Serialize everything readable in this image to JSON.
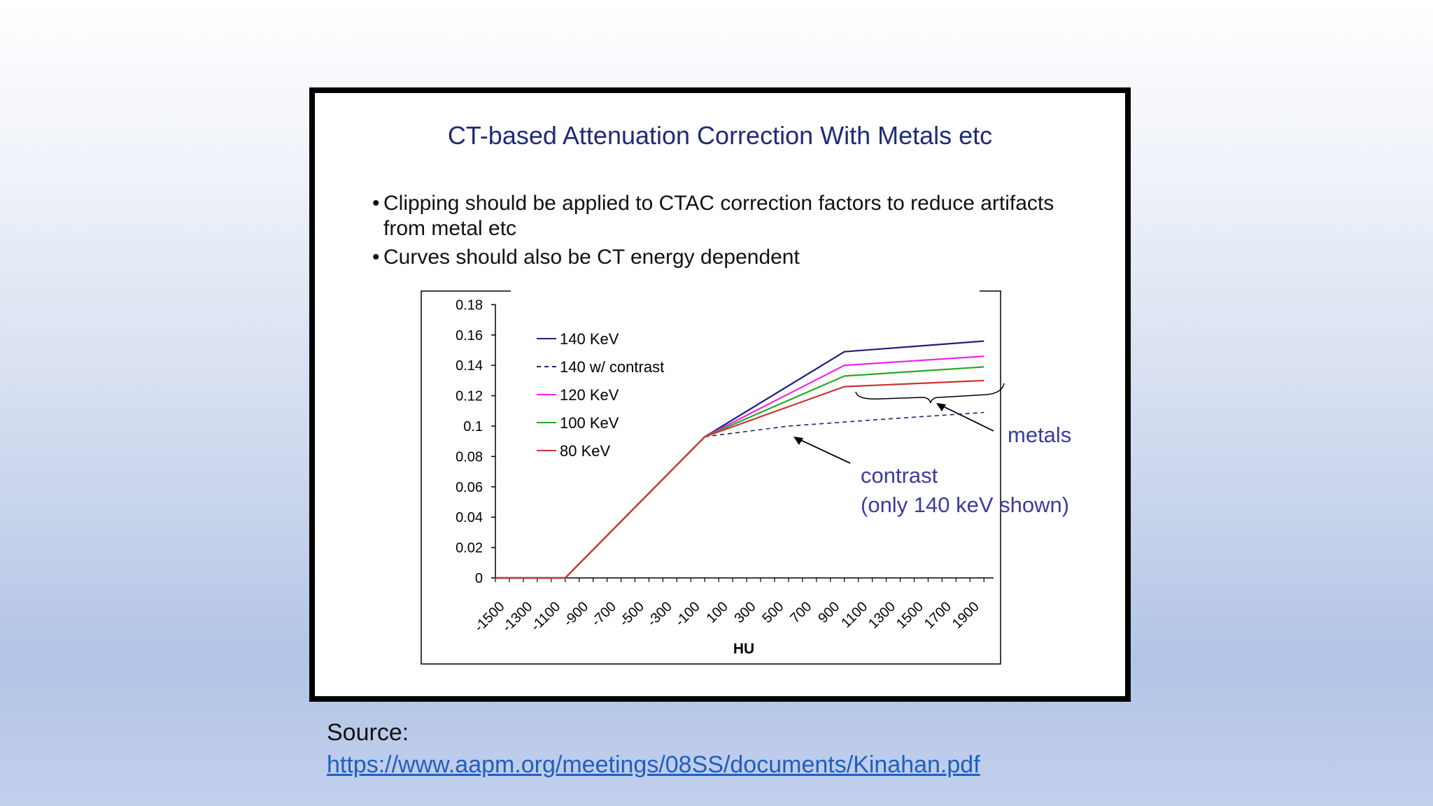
{
  "slide": {
    "title": "CT-based Attenuation Correction With Metals etc",
    "bullets": [
      "Clipping should be applied to CTAC correction factors to reduce artifacts from metal etc",
      "Curves should also be CT energy dependent"
    ],
    "bullet_symbol": "•"
  },
  "chart_data": {
    "type": "line",
    "xlabel": "HU",
    "ylabel": "",
    "title": "",
    "xlim": [
      -1500,
      2100
    ],
    "ylim": [
      0,
      0.18
    ],
    "yticks": [
      "0",
      "0.02",
      "0.04",
      "0.06",
      "0.08",
      "0.1",
      "0.12",
      "0.14",
      "0.16",
      "0.18"
    ],
    "xticks": [
      "-1500",
      "-1300",
      "-1100",
      "-900",
      "-700",
      "-500",
      "-300",
      "-100",
      "100",
      "300",
      "500",
      "700",
      "900",
      "1100",
      "1300",
      "1500",
      "1700",
      "1900"
    ],
    "legend_position": "top-left",
    "series": [
      {
        "name": "140 KeV",
        "color": "#1f1f7a",
        "dash": false,
        "points": [
          [
            -1500,
            0
          ],
          [
            -1000,
            0
          ],
          [
            0,
            0.093
          ],
          [
            1000,
            0.149
          ],
          [
            2000,
            0.156
          ]
        ]
      },
      {
        "name": "140 w/ contrast",
        "color": "#1f1f7a",
        "dash": true,
        "points": [
          [
            0,
            0.093
          ],
          [
            600,
            0.1
          ],
          [
            1200,
            0.104
          ],
          [
            2000,
            0.109
          ]
        ]
      },
      {
        "name": "120 KeV",
        "color": "#ee22ee",
        "dash": false,
        "points": [
          [
            -1500,
            0
          ],
          [
            -1000,
            0
          ],
          [
            0,
            0.093
          ],
          [
            1000,
            0.14
          ],
          [
            2000,
            0.146
          ]
        ]
      },
      {
        "name": "100 KeV",
        "color": "#22aa22",
        "dash": false,
        "points": [
          [
            -1500,
            0
          ],
          [
            -1000,
            0
          ],
          [
            0,
            0.093
          ],
          [
            1000,
            0.133
          ],
          [
            2000,
            0.139
          ]
        ]
      },
      {
        "name": "80 KeV",
        "color": "#cc3333",
        "dash": false,
        "points": [
          [
            -1500,
            0
          ],
          [
            -1000,
            0
          ],
          [
            0,
            0.093
          ],
          [
            1000,
            0.126
          ],
          [
            2000,
            0.13
          ]
        ]
      }
    ],
    "annotations": [
      {
        "text": "metals",
        "color": "#3b3ba0"
      },
      {
        "text": "contrast",
        "color": "#3b3ba0"
      },
      {
        "text": "(only 140 keV shown)",
        "color": "#3b3ba0"
      }
    ]
  },
  "source": {
    "label": "Source:",
    "link": "https://www.aapm.org/meetings/08SS/documents/Kinahan.pdf",
    "link_color": "#1f5fbf"
  }
}
